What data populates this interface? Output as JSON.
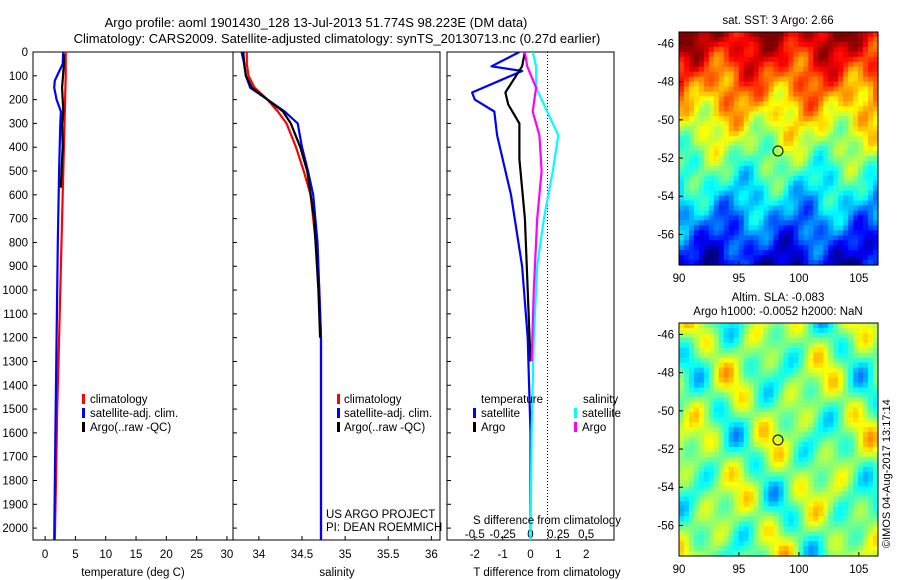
{
  "header": {
    "line1": "Argo profile: aoml 1901430_128 13-Jul-2013 51.774S 98.223E (DM data)",
    "line2": "Climatology: CARS2009. Satellite-adjusted climatology: synTS_20130713.nc (0.27d earlier)"
  },
  "depth_ticks": [
    "0",
    "100",
    "200",
    "300",
    "400",
    "500",
    "600",
    "700",
    "800",
    "900",
    "1000",
    "1100",
    "1200",
    "1300",
    "1400",
    "1500",
    "1600",
    "1700",
    "1800",
    "1900",
    "2000"
  ],
  "legend_items": [
    "climatology",
    "satellite-adj. clim.",
    "Argo(..raw -QC)"
  ],
  "legend_colors": [
    "#ff0000",
    "#0000ff",
    "#000000"
  ],
  "diff_legend": {
    "temperature_title": "temperature",
    "salinity_title": "salinity",
    "satellite": "satellite",
    "argo": "Argo",
    "colors": {
      "t_sat": "#0000ff",
      "t_argo": "#000000",
      "s_sat": "#00ffff",
      "s_argo": "#ff00ff"
    }
  },
  "credits": {
    "line1": "US ARGO PROJECT",
    "line2": "PI: DEAN ROEMMICH"
  },
  "sst_map": {
    "title": "sat. SST: 3 Argo: 2.66",
    "lat_ticks": [
      "-46",
      "-48",
      "-50",
      "-52",
      "-54",
      "-56"
    ],
    "lon_ticks": [
      "90",
      "95",
      "100",
      "105"
    ]
  },
  "sla_map": {
    "title1": "Altim. SLA: -0.083",
    "title2": "Argo h1000: -0.0052 h2000: NaN",
    "lat_ticks": [
      "-46",
      "-48",
      "-50",
      "-52",
      "-54",
      "-56"
    ],
    "lon_ticks": [
      "90",
      "95",
      "100",
      "105"
    ]
  },
  "stamp": "©IMOS 04-Aug-2017 13:17:14",
  "chart_data": [
    {
      "type": "line",
      "xlabel": "temperature (deg C)",
      "ylabel": "",
      "xlim": [
        -2,
        31
      ],
      "ylim": [
        2050,
        0
      ],
      "x_ticks": [
        "0",
        "5",
        "10",
        "15",
        "20",
        "25",
        "30"
      ],
      "series": [
        {
          "name": "climatology",
          "color": "#ff0000",
          "x": [
            3.4,
            3.4,
            3.4,
            3.3,
            3.2,
            3.1,
            3.0,
            2.8,
            2.6,
            2.4,
            2.2,
            2.0,
            1.8,
            1.6
          ],
          "y": [
            0,
            50,
            100,
            200,
            300,
            400,
            500,
            700,
            900,
            1100,
            1300,
            1500,
            1800,
            2050
          ]
        },
        {
          "name": "satellite-adj. clim.",
          "color": "#0000ff",
          "x": [
            3.0,
            2.9,
            1.6,
            1.5,
            1.9,
            2.6,
            2.5,
            2.3,
            2.1,
            1.9,
            1.7,
            1.5
          ],
          "y": [
            0,
            50,
            120,
            150,
            200,
            250,
            300,
            500,
            800,
            1200,
            1600,
            2050
          ]
        },
        {
          "name": "Argo(..raw -QC)",
          "color": "#000000",
          "x": [
            3.1,
            3.1,
            2.8,
            3.0,
            2.8,
            2.9,
            2.7,
            2.6
          ],
          "y": [
            10,
            50,
            150,
            250,
            300,
            400,
            500,
            570
          ]
        }
      ]
    },
    {
      "type": "line",
      "xlabel": "salinity",
      "ylabel": "",
      "xlim": [
        33.7,
        36.1
      ],
      "ylim": [
        2050,
        0
      ],
      "x_ticks": [
        "34",
        "34.5",
        "35",
        "35.5",
        "36"
      ],
      "series": [
        {
          "name": "climatology",
          "color": "#ff0000",
          "x": [
            33.86,
            33.86,
            33.88,
            33.95,
            34.1,
            34.22,
            34.32,
            34.43,
            34.52,
            34.6,
            34.66,
            34.7,
            34.72,
            34.72,
            34.72
          ],
          "y": [
            0,
            50,
            100,
            150,
            200,
            250,
            300,
            400,
            500,
            600,
            800,
            1000,
            1200,
            1600,
            2050
          ]
        },
        {
          "name": "satellite-adj. clim.",
          "color": "#0000ff",
          "x": [
            33.8,
            33.83,
            33.85,
            33.9,
            34.1,
            34.3,
            34.45,
            34.5,
            34.57,
            34.63,
            34.68,
            34.7,
            34.72,
            34.72,
            34.72
          ],
          "y": [
            0,
            50,
            100,
            150,
            200,
            250,
            300,
            400,
            500,
            600,
            800,
            1000,
            1200,
            1600,
            2050
          ]
        },
        {
          "name": "Argo(..raw -QC)",
          "color": "#000000",
          "x": [
            33.82,
            33.83,
            33.85,
            33.92,
            34.1,
            34.28,
            34.37,
            34.48,
            34.56,
            34.64,
            34.69,
            34.71
          ],
          "y": [
            0,
            50,
            100,
            150,
            200,
            250,
            300,
            400,
            500,
            700,
            1000,
            1200
          ]
        }
      ]
    },
    {
      "type": "line",
      "xlabel": "T difference from climatology",
      "ylabel": "",
      "title_top": "S difference from climatology",
      "xlim": [
        -3,
        3
      ],
      "ylim": [
        2050,
        0
      ],
      "x_ticks": [
        "-2",
        "-1",
        "0",
        "1",
        "2"
      ],
      "s_ticks": [
        "-0.5",
        "-0.25",
        "0",
        "0.25",
        "0.5"
      ],
      "series": [
        {
          "name": "temperature satellite",
          "color": "#0000ff",
          "x": [
            -0.4,
            -1.4,
            -0.3,
            -2.1,
            -2.0,
            -1.3,
            -1.2,
            -0.7,
            -0.3,
            -0.1,
            0.0,
            0.0
          ],
          "y": [
            0,
            60,
            80,
            170,
            200,
            250,
            350,
            600,
            900,
            1200,
            1600,
            2050
          ]
        },
        {
          "name": "temperature Argo",
          "color": "#000000",
          "x": [
            -0.2,
            -0.3,
            -0.9,
            -0.8,
            -0.4,
            -0.4,
            -0.2,
            -0.1,
            0.0
          ],
          "y": [
            0,
            60,
            170,
            220,
            300,
            450,
            700,
            1000,
            1300
          ]
        },
        {
          "name": "salinity satellite",
          "color": "#00ffff",
          "x": [
            0.02,
            0.05,
            0.05,
            0.15,
            0.25,
            0.2,
            0.12,
            0.06,
            0.03,
            0.01,
            0.0
          ],
          "y": [
            0,
            60,
            150,
            250,
            350,
            500,
            700,
            900,
            1200,
            1600,
            2050
          ]
        },
        {
          "name": "salinity Argo",
          "color": "#ff00ff",
          "x": [
            -0.05,
            -0.03,
            0.05,
            0.02,
            0.08,
            0.1,
            0.06,
            0.03,
            0.01
          ],
          "y": [
            0,
            60,
            150,
            250,
            350,
            500,
            700,
            1000,
            1300
          ]
        }
      ]
    }
  ]
}
